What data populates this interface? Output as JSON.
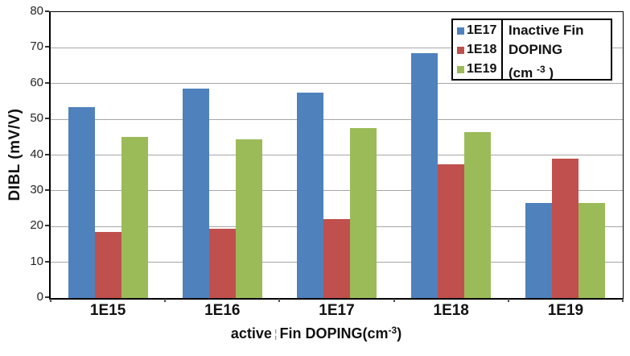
{
  "chart_data": {
    "type": "bar",
    "title": "",
    "ylabel": "DIBL (mV/V)",
    "xlabel": {
      "prefix": "active",
      "separator": "¦",
      "main": "Fin DOPING(cm",
      "sup": "-3",
      "close": ")"
    },
    "categories": [
      "1E15",
      "1E16",
      "1E17",
      "1E18",
      "1E19"
    ],
    "series": [
      {
        "name": "1E17",
        "color": "#4F81BD",
        "values": [
          53.5,
          58.5,
          57.5,
          68.5,
          26.5
        ]
      },
      {
        "name": "1E18",
        "color": "#C0504D",
        "values": [
          18.5,
          19.5,
          22,
          37.5,
          39
        ]
      },
      {
        "name": "1E19",
        "color": "#9BBB59",
        "values": [
          45,
          44.5,
          47.5,
          46.5,
          26.5
        ]
      }
    ],
    "ylim": [
      0,
      80
    ],
    "ytick_step": 10,
    "yticks": [
      "0",
      "10",
      "20",
      "30",
      "40",
      "50",
      "60",
      "70",
      "80"
    ],
    "grid": true,
    "legend": {
      "position": "top-right",
      "entries": [
        "1E17",
        "1E18",
        "1E19"
      ],
      "title_lines": [
        "Inactive Fin",
        "DOPING"
      ],
      "unit_open": "(cm",
      "unit_sup": "-3",
      "unit_close": " )"
    }
  },
  "ui": {
    "background": "#ffffff",
    "axis_color": "#000000",
    "grid_color": "#a6a6a6",
    "text_color": "#111111"
  }
}
